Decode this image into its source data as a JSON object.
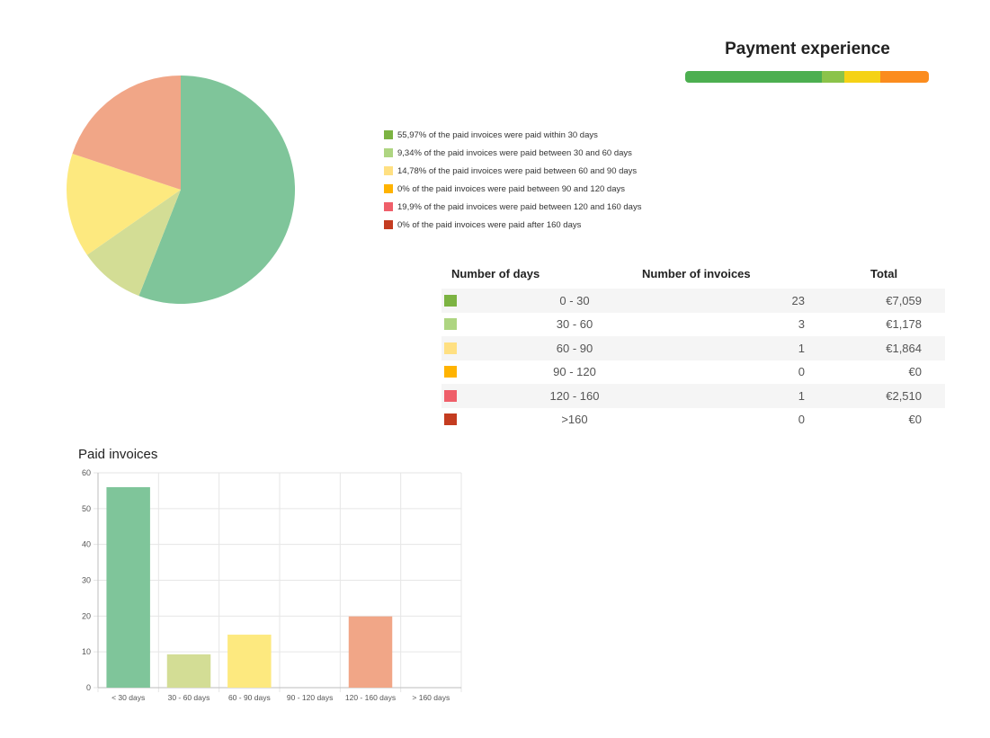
{
  "payment_experience": {
    "title": "Payment experience",
    "segments": [
      {
        "fraction": 0.5597,
        "color": "#4caf50"
      },
      {
        "fraction": 0.0934,
        "color": "#8bc34a"
      },
      {
        "fraction": 0.1478,
        "color": "#f5d216"
      },
      {
        "fraction": 0.199,
        "color": "#fb8c1e"
      }
    ]
  },
  "legend": [
    {
      "text": "55,97% of the paid invoices were paid within 30 days",
      "color": "#7cb342"
    },
    {
      "text": "9,34% of the paid invoices were paid between 30 and 60 days",
      "color": "#aed581"
    },
    {
      "text": "14,78% of the paid invoices were paid between 60 and 90 days",
      "color": "#ffe082"
    },
    {
      "text": "0% of the paid invoices were paid between 90 and 120 days",
      "color": "#ffb300"
    },
    {
      "text": "19,9% of the paid invoices were paid between 120 and 160 days",
      "color": "#ef5f6a"
    },
    {
      "text": "0% of the paid invoices were paid after 160 days",
      "color": "#c43c20"
    }
  ],
  "table": {
    "headers": {
      "days": "Number of days",
      "invoices": "Number of invoices",
      "total": "Total"
    },
    "rows": [
      {
        "days": "0 - 30",
        "invoices": "23",
        "total": "€7,059",
        "color": "#7cb342"
      },
      {
        "days": "30 - 60",
        "invoices": "3",
        "total": "€1,178",
        "color": "#aed581"
      },
      {
        "days": "60 - 90",
        "invoices": "1",
        "total": "€1,864",
        "color": "#ffe082"
      },
      {
        "days": "90 - 120",
        "invoices": "0",
        "total": "€0",
        "color": "#ffb300"
      },
      {
        "days": "120 - 160",
        "invoices": "1",
        "total": "€2,510",
        "color": "#ef5f6a"
      },
      {
        "days": ">160",
        "invoices": "0",
        "total": "€0",
        "color": "#c43c20"
      }
    ]
  },
  "chart_data": [
    {
      "type": "pie",
      "title": "",
      "slices": [
        {
          "value": 55.97,
          "color": "#7fc59a"
        },
        {
          "value": 9.34,
          "color": "#d3dd95"
        },
        {
          "value": 14.78,
          "color": "#fde97f"
        },
        {
          "value": 0,
          "color": "#f5b545"
        },
        {
          "value": 19.9,
          "color": "#f1a687"
        },
        {
          "value": 0,
          "color": "#c0392b"
        }
      ]
    },
    {
      "type": "bar",
      "title": "Paid invoices",
      "xlabel": "",
      "ylabel": "",
      "categories": [
        "< 30 days",
        "30 - 60 days",
        "60 - 90 days",
        "90 - 120 days",
        "120 - 160 days",
        "> 160 days"
      ],
      "values": [
        56,
        9.3,
        14.8,
        0,
        19.9,
        0
      ],
      "colors": [
        "#7fc59a",
        "#d3dd95",
        "#fde97f",
        "#f5b545",
        "#f1a687",
        "#c0392b"
      ],
      "ylim": [
        0,
        60
      ],
      "yticks": [
        0,
        10,
        20,
        30,
        40,
        50,
        60
      ],
      "grid": true
    }
  ]
}
